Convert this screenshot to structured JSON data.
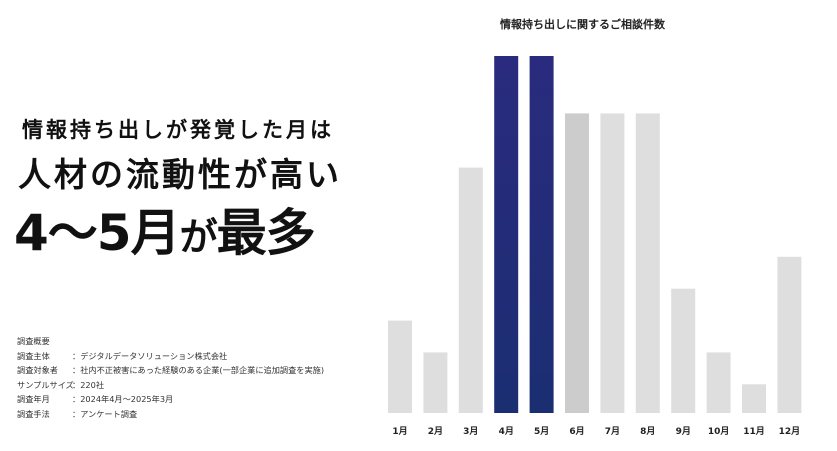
{
  "headline": {
    "line1": "情報持ち出しが発覚した月は",
    "line2": "人材の流動性が高い",
    "line3_main": "4〜5月",
    "line3_particle": "が",
    "line3_tail": "最多"
  },
  "survey": {
    "heading": "調査概要",
    "rows": [
      {
        "key": "調査主体",
        "value": "：デジタルデータソリューション株式会社"
      },
      {
        "key": "調査対象者",
        "value": "：社内不正被害にあった経験のある企業(一部企業に追加調査を実施)"
      },
      {
        "key": "サンプルサイズ",
        "value": "：220社"
      },
      {
        "key": "調査年月",
        "value": "：2024年4月〜2025年3月"
      },
      {
        "key": "調査手法",
        "value": "：アンケート調査"
      }
    ]
  },
  "chart_data": {
    "type": "bar",
    "title": "情報持ち出しに関するご相談件数",
    "categories": [
      "1月",
      "2月",
      "3月",
      "4月",
      "5月",
      "6月",
      "7月",
      "8月",
      "9月",
      "10月",
      "11月",
      "12月"
    ],
    "values": [
      29,
      19,
      77,
      112,
      112,
      94,
      94,
      94,
      39,
      19,
      9,
      49
    ],
    "highlight": [
      false,
      false,
      false,
      true,
      true,
      false,
      false,
      false,
      false,
      false,
      false,
      false
    ],
    "ylim": [
      0,
      112
    ],
    "grid": false,
    "colors": {
      "normal": "#dedede",
      "muted": "#cccccc",
      "highlight_top": "#2a2b7e",
      "highlight_bottom": "#1b2e72"
    },
    "muted_index": 5
  }
}
